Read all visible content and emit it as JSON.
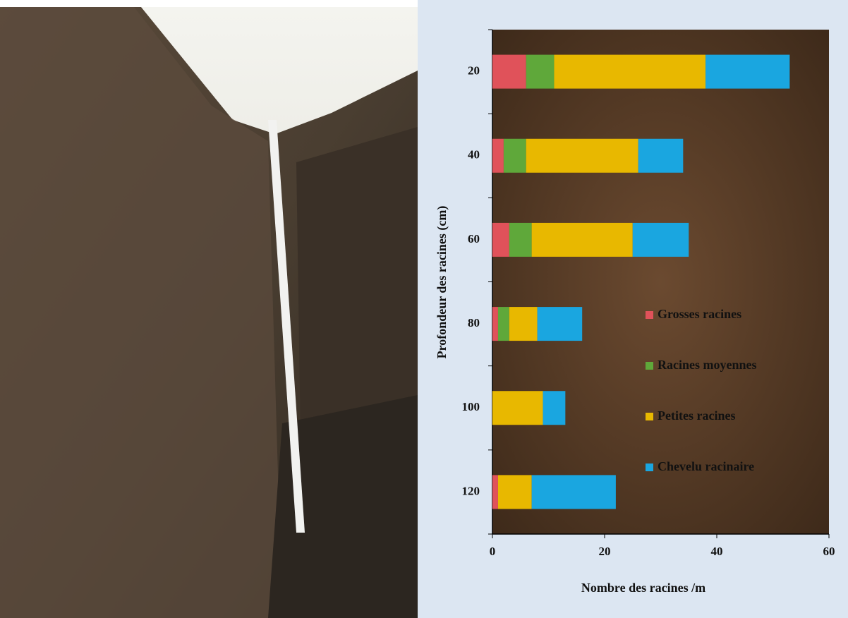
{
  "chart_data": {
    "type": "stacked-bar-horizontal",
    "xlabel": "Nombre des racines /m",
    "ylabel": "Profondeur des racines (cm)",
    "categories": [
      "20",
      "40",
      "60",
      "80",
      "100",
      "120"
    ],
    "series": [
      {
        "name": "Grosses racines",
        "color": "#e0525a",
        "values": [
          6,
          2,
          3,
          1,
          0,
          1
        ]
      },
      {
        "name": "Racines moyennes",
        "color": "#5fa83a",
        "values": [
          5,
          4,
          4,
          2,
          0,
          0
        ]
      },
      {
        "name": "Petites racines",
        "color": "#e8b800",
        "values": [
          27,
          20,
          18,
          5,
          9,
          6
        ]
      },
      {
        "name": "Chevelu racinaire",
        "color": "#1aa6e0",
        "values": [
          15,
          8,
          10,
          8,
          4,
          15
        ]
      }
    ],
    "xlim": [
      0,
      60
    ],
    "xticks": [
      0,
      20,
      40,
      60
    ],
    "legend": "right"
  }
}
